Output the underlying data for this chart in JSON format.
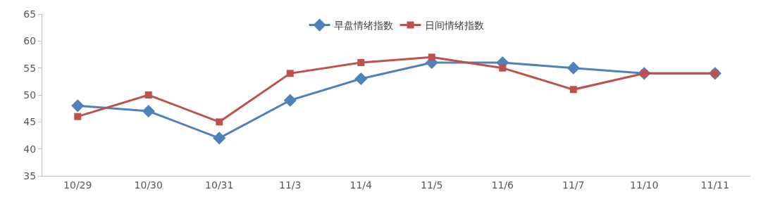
{
  "chart_data": {
    "type": "line",
    "categories": [
      "10/29",
      "10/30",
      "10/31",
      "11/3",
      "11/4",
      "11/5",
      "11/6",
      "11/7",
      "11/10",
      "11/11"
    ],
    "series": [
      {
        "name": "早盘情绪指数",
        "color": "#4f81bd",
        "marker": "diamond",
        "values": [
          48,
          47,
          42,
          49,
          53,
          56,
          56,
          55,
          54,
          54
        ]
      },
      {
        "name": "日间情绪指数",
        "color": "#c0504d",
        "marker": "square",
        "values": [
          46,
          50,
          45,
          54,
          56,
          57,
          55,
          51,
          54,
          54
        ]
      }
    ],
    "ylim": [
      35,
      65
    ],
    "yticks": [
      35,
      40,
      45,
      50,
      55,
      60,
      65
    ],
    "grid": false,
    "legend": "top",
    "line_style": "solid"
  }
}
